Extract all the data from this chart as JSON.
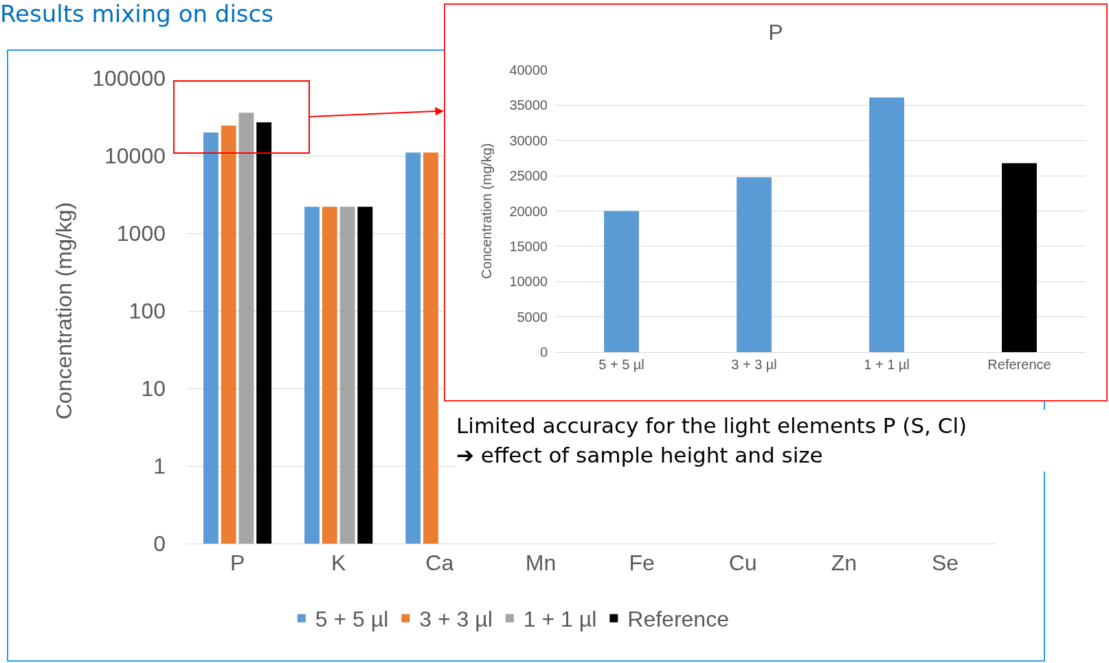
{
  "chart_data": [
    {
      "type": "bar",
      "title": "Results mixing on discs",
      "ylabel": "Concentration (mg/kg)",
      "categories": [
        "P",
        "K",
        "Ca",
        "Mn",
        "Fe",
        "Cu",
        "Zn",
        "Se"
      ],
      "series": [
        {
          "name": "5 + 5 µl",
          "color": "#5b9bd5",
          "values": [
            20000,
            2200,
            11000,
            null,
            null,
            null,
            null,
            null
          ]
        },
        {
          "name": "3 + 3 µl",
          "color": "#ed7d31",
          "values": [
            24500,
            2200,
            11000,
            null,
            null,
            null,
            null,
            null
          ]
        },
        {
          "name": "1 + 1 µl",
          "color": "#a5a5a5",
          "values": [
            36000,
            2200,
            null,
            null,
            null,
            null,
            null,
            null
          ]
        },
        {
          "name": "Reference",
          "color": "#000000",
          "values": [
            27000,
            2200,
            null,
            null,
            null,
            null,
            null,
            null
          ]
        }
      ],
      "log": "y",
      "ylim": [
        0.1,
        100000
      ],
      "yticks": [
        {
          "value": 0.1,
          "label": "0"
        },
        1,
        10,
        100,
        1000,
        10000,
        100000
      ],
      "grid": "y",
      "legend": "bottom",
      "annotations": [
        "Limited accuracy for the light elements P (S, Cl)",
        "➔ effect of sample height and size"
      ]
    },
    {
      "type": "bar",
      "title": "P",
      "ylabel": "Concentration (mg/kg)",
      "categories": [
        "5 + 5 µl",
        "3 + 3 µl",
        "1 + 1 µl",
        "Reference"
      ],
      "values": [
        20000,
        24800,
        36100,
        26800
      ],
      "colors": [
        "#5b9bd5",
        "#5b9bd5",
        "#5b9bd5",
        "#000000"
      ],
      "ylim": [
        0,
        40000
      ],
      "yticks": [
        0,
        5000,
        10000,
        15000,
        20000,
        25000,
        30000,
        35000,
        40000
      ],
      "grid": "y",
      "legend": false
    }
  ]
}
